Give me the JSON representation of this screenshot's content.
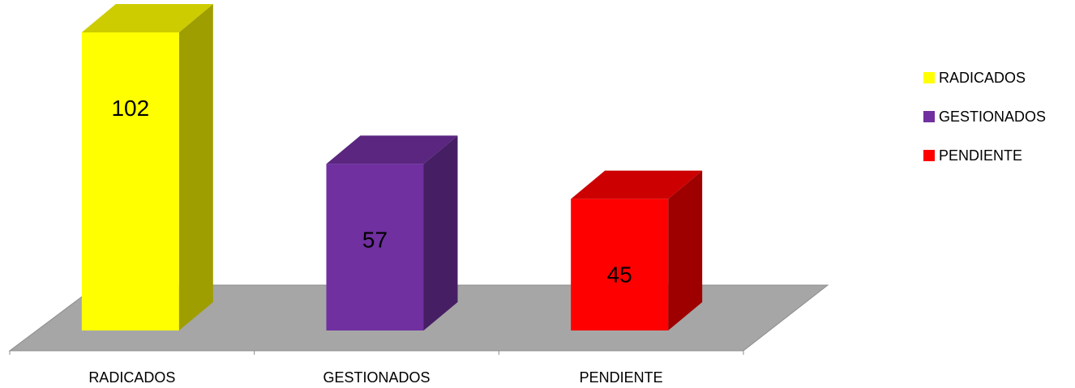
{
  "chart_data": {
    "type": "bar",
    "style": "3d-columns",
    "title": "",
    "xlabel": "",
    "ylabel": "",
    "categories": [
      "RADICADOS",
      "GESTIONADOS",
      "PENDIENTE"
    ],
    "values": [
      102,
      57,
      45
    ],
    "data_labels": [
      "102",
      "57",
      "45"
    ],
    "colors": [
      "#FFFF00",
      "#7030A0",
      "#FF0000"
    ],
    "legend": {
      "placement": "right",
      "entries": [
        "RADICADOS",
        "GESTIONADOS",
        "PENDIENTE"
      ]
    },
    "floor_color": "#A6A6A6",
    "grid": false
  }
}
